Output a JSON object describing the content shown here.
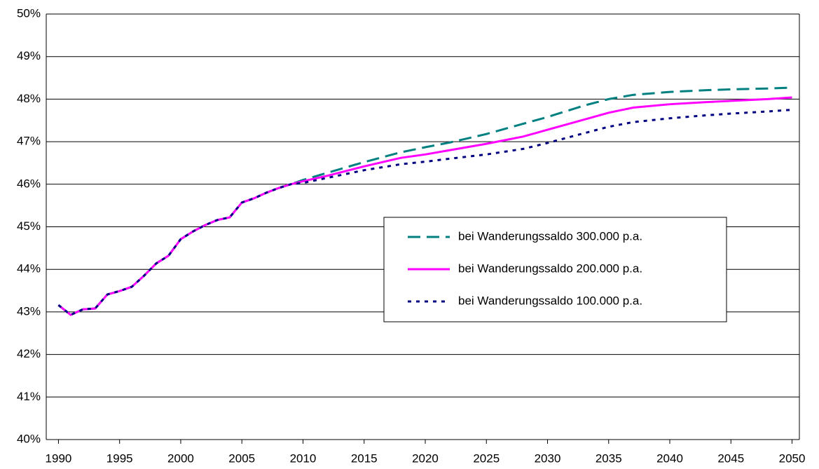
{
  "chart_data": {
    "type": "line",
    "x": [
      1990,
      1991,
      1992,
      1993,
      1994,
      1995,
      1996,
      1997,
      1998,
      1999,
      2000,
      2001,
      2002,
      2003,
      2004,
      2005,
      2006,
      2007,
      2008,
      2009,
      2010,
      2012,
      2015,
      2018,
      2020,
      2022,
      2025,
      2028,
      2030,
      2033,
      2035,
      2037,
      2040,
      2043,
      2045,
      2048,
      2050
    ],
    "series": [
      {
        "name": "bei Wanderungssaldo 300.000 p.a.",
        "color": "#008080",
        "dash": "dashed",
        "values": [
          43.16,
          42.93,
          43.06,
          43.08,
          43.41,
          43.49,
          43.59,
          43.85,
          44.14,
          44.32,
          44.71,
          44.89,
          45.04,
          45.16,
          45.22,
          45.57,
          45.67,
          45.8,
          45.91,
          46.0,
          46.1,
          46.27,
          46.52,
          46.75,
          46.87,
          46.98,
          47.18,
          47.42,
          47.58,
          47.85,
          48.0,
          48.1,
          48.17,
          48.21,
          48.23,
          48.25,
          48.27
        ]
      },
      {
        "name": "bei Wanderungssaldo 200.000 p.a.",
        "color": "#ff00ff",
        "dash": "solid",
        "values": [
          43.16,
          42.93,
          43.06,
          43.08,
          43.41,
          43.49,
          43.59,
          43.85,
          44.14,
          44.32,
          44.71,
          44.89,
          45.04,
          45.16,
          45.22,
          45.57,
          45.67,
          45.8,
          45.91,
          46.0,
          46.07,
          46.2,
          46.42,
          46.62,
          46.7,
          46.8,
          46.95,
          47.12,
          47.28,
          47.52,
          47.68,
          47.8,
          47.88,
          47.93,
          47.96,
          48.0,
          48.04
        ]
      },
      {
        "name": "bei Wanderungssaldo 100.000 p.a.",
        "color": "#000080",
        "dash": "dotted",
        "values": [
          43.16,
          42.93,
          43.06,
          43.08,
          43.41,
          43.49,
          43.59,
          43.85,
          44.14,
          44.32,
          44.71,
          44.89,
          45.04,
          45.16,
          45.22,
          45.57,
          45.67,
          45.8,
          45.91,
          46.0,
          46.03,
          46.15,
          46.33,
          46.47,
          46.53,
          46.6,
          46.7,
          46.83,
          46.97,
          47.2,
          47.35,
          47.46,
          47.55,
          47.62,
          47.66,
          47.71,
          47.75
        ]
      }
    ],
    "xlim": [
      1989,
      2050.6
    ],
    "xticks": [
      1990,
      1995,
      2000,
      2005,
      2010,
      2015,
      2020,
      2025,
      2030,
      2035,
      2040,
      2045,
      2050
    ],
    "ylim": [
      40,
      50
    ],
    "yticks": [
      {
        "value": 40,
        "label": "40%"
      },
      {
        "value": 41,
        "label": "41%"
      },
      {
        "value": 42,
        "label": "42%"
      },
      {
        "value": 43,
        "label": "43%"
      },
      {
        "value": 44,
        "label": "44%"
      },
      {
        "value": 45,
        "label": "45%"
      },
      {
        "value": 46,
        "label": "46%"
      },
      {
        "value": 47,
        "label": "47%"
      },
      {
        "value": 48,
        "label": "48%"
      },
      {
        "value": 49,
        "label": "49%"
      },
      {
        "value": 50,
        "label": "50%"
      }
    ],
    "grid": true
  }
}
